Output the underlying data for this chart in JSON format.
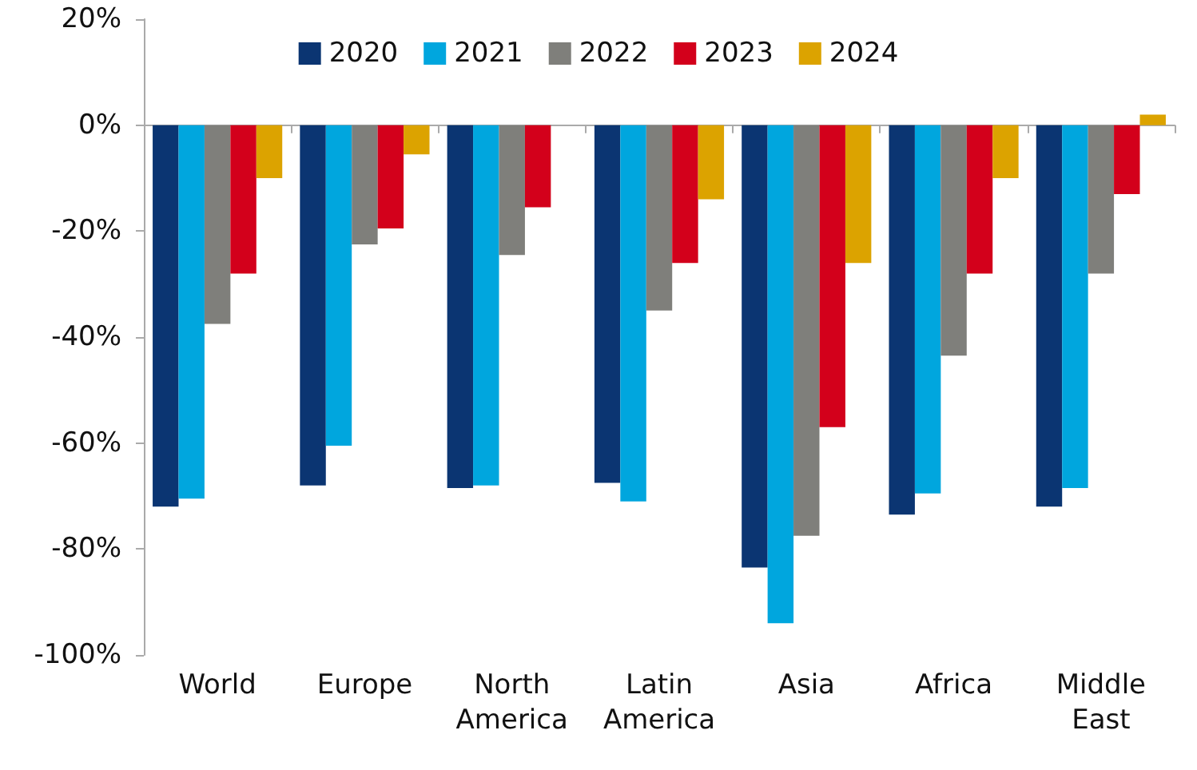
{
  "chart_data": {
    "type": "bar",
    "categories": [
      "World",
      "Europe",
      "North\nAmerica",
      "Latin\nAmerica",
      "Asia",
      "Africa",
      "Middle\nEast"
    ],
    "series": [
      {
        "name": "2020",
        "color": "#0b3572",
        "values": [
          -72,
          -68,
          -68.5,
          -67.5,
          -83.5,
          -73.5,
          -72
        ]
      },
      {
        "name": "2021",
        "color": "#00a6de",
        "values": [
          -70.5,
          -60.5,
          -68,
          -71,
          -94,
          -69.5,
          -68.5
        ]
      },
      {
        "name": "2022",
        "color": "#7f7f7b",
        "values": [
          -37.5,
          -22.5,
          -24.5,
          -35,
          -77.5,
          -43.5,
          -28
        ]
      },
      {
        "name": "2023",
        "color": "#d3001b",
        "values": [
          -28,
          -19.5,
          -15.5,
          -26,
          -57,
          -28,
          -13
        ]
      },
      {
        "name": "2024",
        "color": "#dca300",
        "values": [
          -10,
          -5.5,
          0,
          -14,
          -26,
          -10,
          2
        ]
      }
    ],
    "ylim": [
      -100,
      20
    ],
    "yticks": [
      {
        "value": -100,
        "label": "-100%"
      },
      {
        "value": -80,
        "label": "-80%"
      },
      {
        "value": -60,
        "label": "-60%"
      },
      {
        "value": -40,
        "label": "-40%"
      },
      {
        "value": -20,
        "label": "-20%"
      },
      {
        "value": 0,
        "label": "0%"
      },
      {
        "value": 20,
        "label": "20%"
      }
    ],
    "legend": "top"
  }
}
